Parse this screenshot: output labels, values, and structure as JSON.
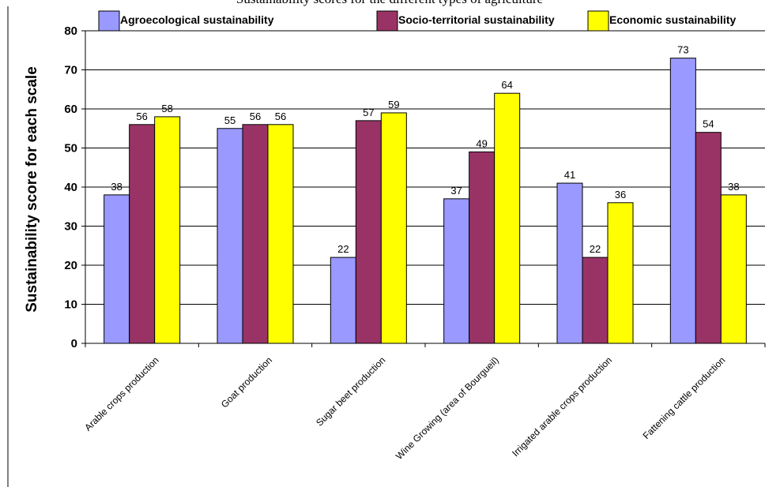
{
  "chart_data": {
    "type": "bar",
    "title": "Sustainability scores for the different types of agriculture",
    "xlabel": "",
    "ylabel": "Sustainability score for each scale",
    "ylim": [
      0,
      80
    ],
    "yticks": [
      0,
      10,
      20,
      30,
      40,
      50,
      60,
      70,
      80
    ],
    "grid": true,
    "legend_position": "top",
    "categories": [
      "Arable crops  production",
      "Goat production",
      "Sugar beet production",
      "Wine Growing (area of Bourgueil)",
      "Irrigated arable crops production",
      "Fattening cattle production"
    ],
    "series": [
      {
        "name": "Agroecological sustainability",
        "color": "#9999ff",
        "values": [
          38,
          55,
          22,
          37,
          41,
          73
        ]
      },
      {
        "name": "Socio-territorial sustainability",
        "color": "#993366",
        "values": [
          56,
          56,
          57,
          49,
          22,
          54
        ]
      },
      {
        "name": "Economic sustainability",
        "color": "#ffff00",
        "values": [
          58,
          56,
          59,
          64,
          36,
          38
        ]
      }
    ]
  }
}
